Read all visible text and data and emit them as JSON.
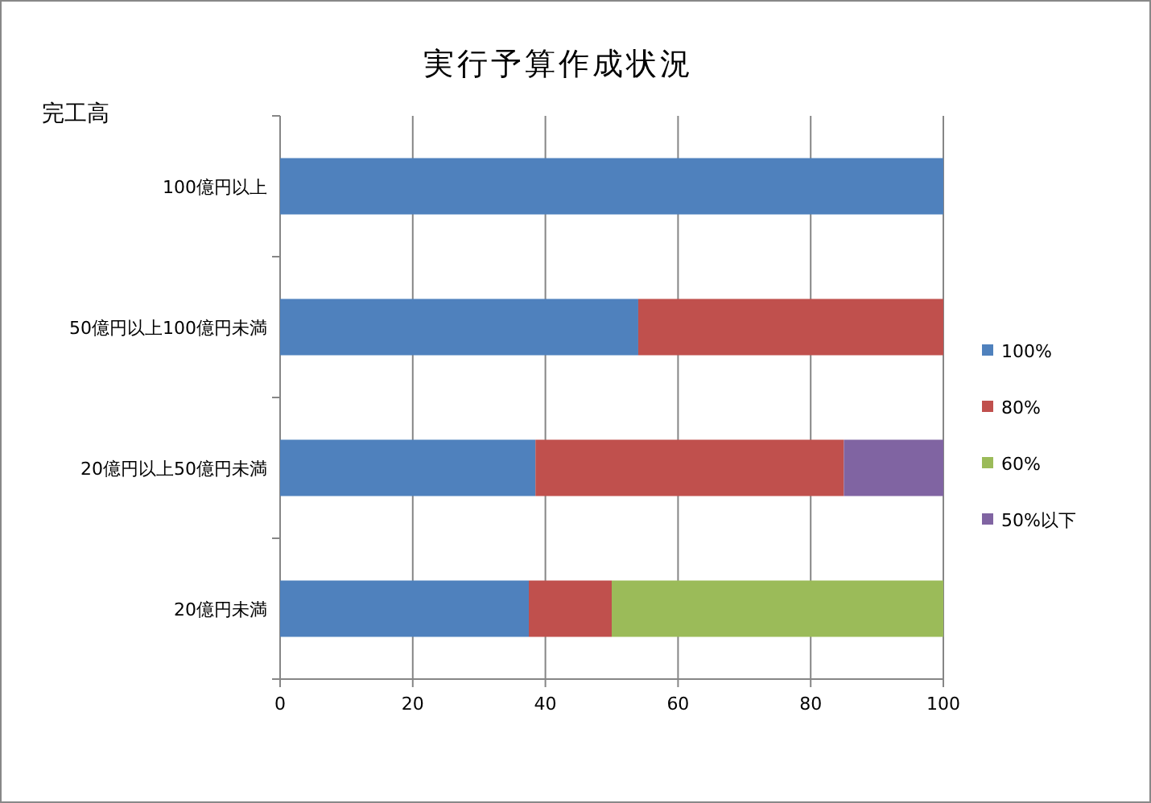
{
  "chart_data": {
    "type": "bar",
    "title": "実行予算作成状況",
    "ylabel": "完工高",
    "orientation": "horizontal",
    "stacked": true,
    "categories": [
      "100億円以上",
      "50億円以上100億円未満",
      "20億円以上50億円未満",
      "20億円未満"
    ],
    "series": [
      {
        "name": "100%",
        "color": "#4f81bd",
        "values": [
          100,
          54,
          38.5,
          37.5
        ]
      },
      {
        "name": "80%",
        "color": "#c0504d",
        "values": [
          null,
          46,
          46.5,
          12.5
        ]
      },
      {
        "name": "60%",
        "color": "#9bbb59",
        "values": [
          null,
          null,
          null,
          50
        ]
      },
      {
        "name": "50%以下",
        "color": "#8064a2",
        "values": [
          null,
          null,
          15,
          null
        ]
      }
    ],
    "xlim": [
      0,
      100
    ],
    "xticks": [
      0,
      20,
      40,
      60,
      80,
      100
    ],
    "grid": "x",
    "legend": "right"
  }
}
